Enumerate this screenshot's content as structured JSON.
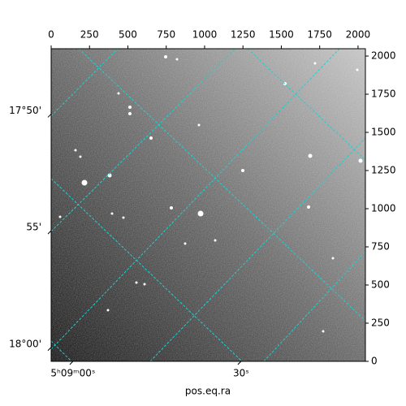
{
  "chart_data": {
    "type": "image",
    "xlabel": "pos.eq.ra",
    "xlim": [
      0,
      2048
    ],
    "ylim": [
      0,
      2048
    ],
    "xticks": [
      0,
      250,
      500,
      750,
      1000,
      1250,
      1500,
      1750,
      2000
    ],
    "yticks": [
      0,
      250,
      500,
      750,
      1000,
      1250,
      1500,
      1750,
      2000
    ],
    "ra_lim": [
      -3.9,
      52.2
    ],
    "ra_ticks": [
      {
        "value": 0,
        "label": "5ʰ09ᵐ00ˢ"
      },
      {
        "value": 30,
        "label": "30ˢ"
      }
    ],
    "dec_lim": [
      1080.6,
      1067.2
    ],
    "dec_ticks": [
      {
        "value": 1070,
        "label": "17°50'"
      },
      {
        "value": 1075,
        "label": "55'"
      },
      {
        "value": 1080,
        "label": "18°00'"
      }
    ],
    "grid": true,
    "grid_color": "#19d3d3"
  }
}
